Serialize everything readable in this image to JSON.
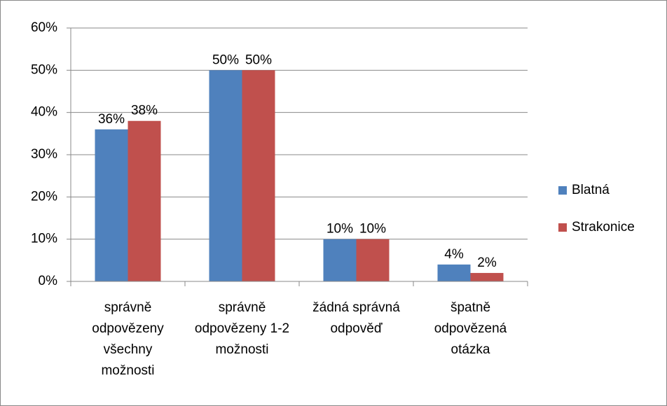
{
  "chart_data": {
    "type": "bar",
    "categories": [
      "správně odpovězeny všechny možnosti",
      "správně odpovězeny 1-2 možnosti",
      "žádná správná odpověď",
      "špatně odpovězená otázka"
    ],
    "series": [
      {
        "name": "Blatná",
        "color": "#4f81bd",
        "values": [
          36,
          50,
          10,
          4
        ],
        "value_labels": [
          "36%",
          "50%",
          "10%",
          "4%"
        ]
      },
      {
        "name": "Strakonice",
        "color": "#c0504d",
        "values": [
          38,
          50,
          10,
          2
        ],
        "value_labels": [
          "38%",
          "50%",
          "10%",
          "2%"
        ]
      }
    ],
    "ylim": [
      0,
      60
    ],
    "yticks": [
      {
        "value": 0,
        "label": "0%"
      },
      {
        "value": 10,
        "label": "10%"
      },
      {
        "value": 20,
        "label": "20%"
      },
      {
        "value": 30,
        "label": "30%"
      },
      {
        "value": 40,
        "label": "40%"
      },
      {
        "value": 50,
        "label": "50%"
      },
      {
        "value": 60,
        "label": "60%"
      }
    ],
    "grid": true,
    "legend": "right"
  }
}
